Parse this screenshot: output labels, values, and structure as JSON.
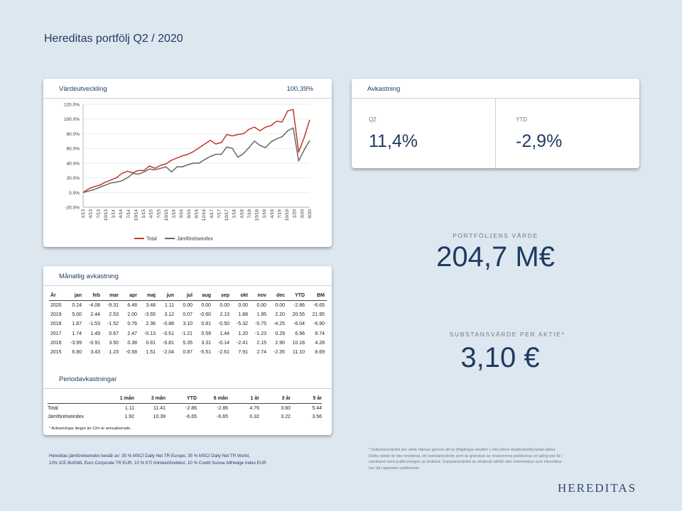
{
  "page": {
    "title": "Hereditas portfölj Q2 / 2020"
  },
  "value_card": {
    "label": "Värdeutveckling",
    "value": "100,39%"
  },
  "returns_card": {
    "label": "Avkastning",
    "q2_label": "Q2",
    "q2_value": "11,4%",
    "ytd_label": "YTD",
    "ytd_value": "-2,9%"
  },
  "portfolio": {
    "label": "PORTFÖLJENS VÄRDE",
    "value": "204,7 M€"
  },
  "nav": {
    "label": "SUBSTANSVÄRDE  PER AKTIE*",
    "value": "3,10 €"
  },
  "monthly": {
    "label": "Månatlig avkastning",
    "headers": [
      "År",
      "jan",
      "feb",
      "mar",
      "apr",
      "maj",
      "jun",
      "jul",
      "aug",
      "sep",
      "okt",
      "nov",
      "dec",
      "YTD",
      "BM"
    ],
    "rows": [
      [
        "2020",
        "0.24",
        "-4.08",
        "-9.31",
        "6.48",
        "3.48",
        "1.11",
        "0.00",
        "0.00",
        "0.00",
        "0.00",
        "0.00",
        "0.00",
        "-2.86",
        "-6.65"
      ],
      [
        "2019",
        "5.00",
        "2.44",
        "2.53",
        "2.00",
        "-3.65",
        "3.12",
        "0.07",
        "-0.60",
        "2.13",
        "1.88",
        "1.95",
        "2.20",
        "20.55",
        "21.95"
      ],
      [
        "2018",
        "1.87",
        "-1.53",
        "-1.52",
        "0.76",
        "2.36",
        "-0.88",
        "3.10",
        "0.81",
        "-0.50",
        "-5.32",
        "-0.75",
        "-4.25",
        "-6.04",
        "-6.90"
      ],
      [
        "2017",
        "1.74",
        "1.49",
        "0.67",
        "2.47",
        "-0.13",
        "-0.51",
        "-1.21",
        "0.59",
        "1.44",
        "1.20",
        "-1.23",
        "0.29",
        "6.96",
        "8.74"
      ],
      [
        "2016",
        "-3.99",
        "-0.91",
        "3.50",
        "0.38",
        "0.81",
        "-0.81",
        "5.35",
        "3.31",
        "-0.14",
        "-2.41",
        "2.15",
        "2.90",
        "10.18",
        "4.28"
      ],
      [
        "2015",
        "6.80",
        "3.43",
        "1.23",
        "-0.58",
        "1.51",
        "-2.04",
        "0.87",
        "-5.51",
        "-2.61",
        "7.91",
        "2.74",
        "-2.35",
        "11.10",
        "8.69"
      ]
    ]
  },
  "period": {
    "label": "Periodavkastningar",
    "headers": [
      "",
      "1 mån",
      "3 mån",
      "YTD",
      "6 mån",
      "1 år",
      "3 år",
      "5 år"
    ],
    "rows": [
      [
        "Total",
        "1.11",
        "11.41",
        "-2.86",
        "-2.86",
        "4.76",
        "3.60",
        "5.44"
      ],
      [
        "Jämförelseindex",
        "1.92",
        "10.39",
        "-6.65",
        "-6.65",
        "0.32",
        "3.22",
        "3.56"
      ]
    ],
    "note": "* Avkastningar längre än 12m är annualiserade."
  },
  "footer": {
    "left_1": "Hereditas jämförelseindex består av: 35 % MSCI Daily Net TR Europe, 35 % MSCI Daily Net TR World,",
    "left_2": "10% ICE BofAML Euro Corporate TR EUR, 10 % KTI Kiinteistöindeksi, 10 % Credit Suisse AllHedge Index EUR",
    "right_1": "* Substansvärdet per aktie räknas genom att ta (tillgångar-skulder ( inkl.latent skatteskuld))/antal aktier.",
    "right_2": "Detta värde är inte reviderat, ett substansvärde som är granskat av revisorerna publiceras en gång per år i",
    "right_3": "samband med publiceringen av bokslut. Substansvärdet är uträknat utifrån den information som Hereditas",
    "right_4": "har då rapporten publiceras",
    "logo": "HEREDITAS"
  },
  "chart_data": {
    "type": "line",
    "ylim": [
      -20,
      120
    ],
    "yticks": [
      "-20.0%",
      "0.0%",
      "20.0%",
      "40.0%",
      "60.0%",
      "80.0%",
      "100.0%",
      "120.0%"
    ],
    "xticks": [
      "1/13",
      "4/13",
      "7/13",
      "10/13",
      "1/14",
      "4/14",
      "7/14",
      "10/14",
      "1/15",
      "4/15",
      "7/15",
      "10/15",
      "1/16",
      "3/16",
      "6/16",
      "9/16",
      "12/16",
      "4/17",
      "7/17",
      "10/17",
      "1/18",
      "4/18",
      "7/18",
      "10/18",
      "1/19",
      "4/19",
      "7/19",
      "10/19",
      "1/20",
      "3/20",
      "6/20"
    ],
    "series": [
      {
        "name": "Total",
        "color": "#c0392b",
        "values": [
          0,
          5,
          8,
          10,
          14,
          17,
          20,
          26,
          29,
          27,
          30,
          30,
          36,
          33,
          37,
          39,
          44,
          47,
          50,
          52,
          56,
          61,
          66,
          71,
          66,
          68,
          79,
          77,
          79,
          80,
          86,
          89,
          84,
          89,
          91,
          97,
          96,
          111,
          113,
          55,
          75,
          99
        ]
      },
      {
        "name": "Jämförelseindex",
        "color": "#666666",
        "values": [
          0,
          2,
          4,
          7,
          10,
          13,
          14,
          16,
          20,
          26,
          25,
          28,
          32,
          31,
          33,
          35,
          28,
          35,
          35,
          38,
          40,
          40,
          45,
          49,
          52,
          52,
          62,
          60,
          48,
          53,
          61,
          70,
          64,
          61,
          69,
          73,
          76,
          84,
          88,
          43,
          58,
          71
        ]
      }
    ]
  }
}
